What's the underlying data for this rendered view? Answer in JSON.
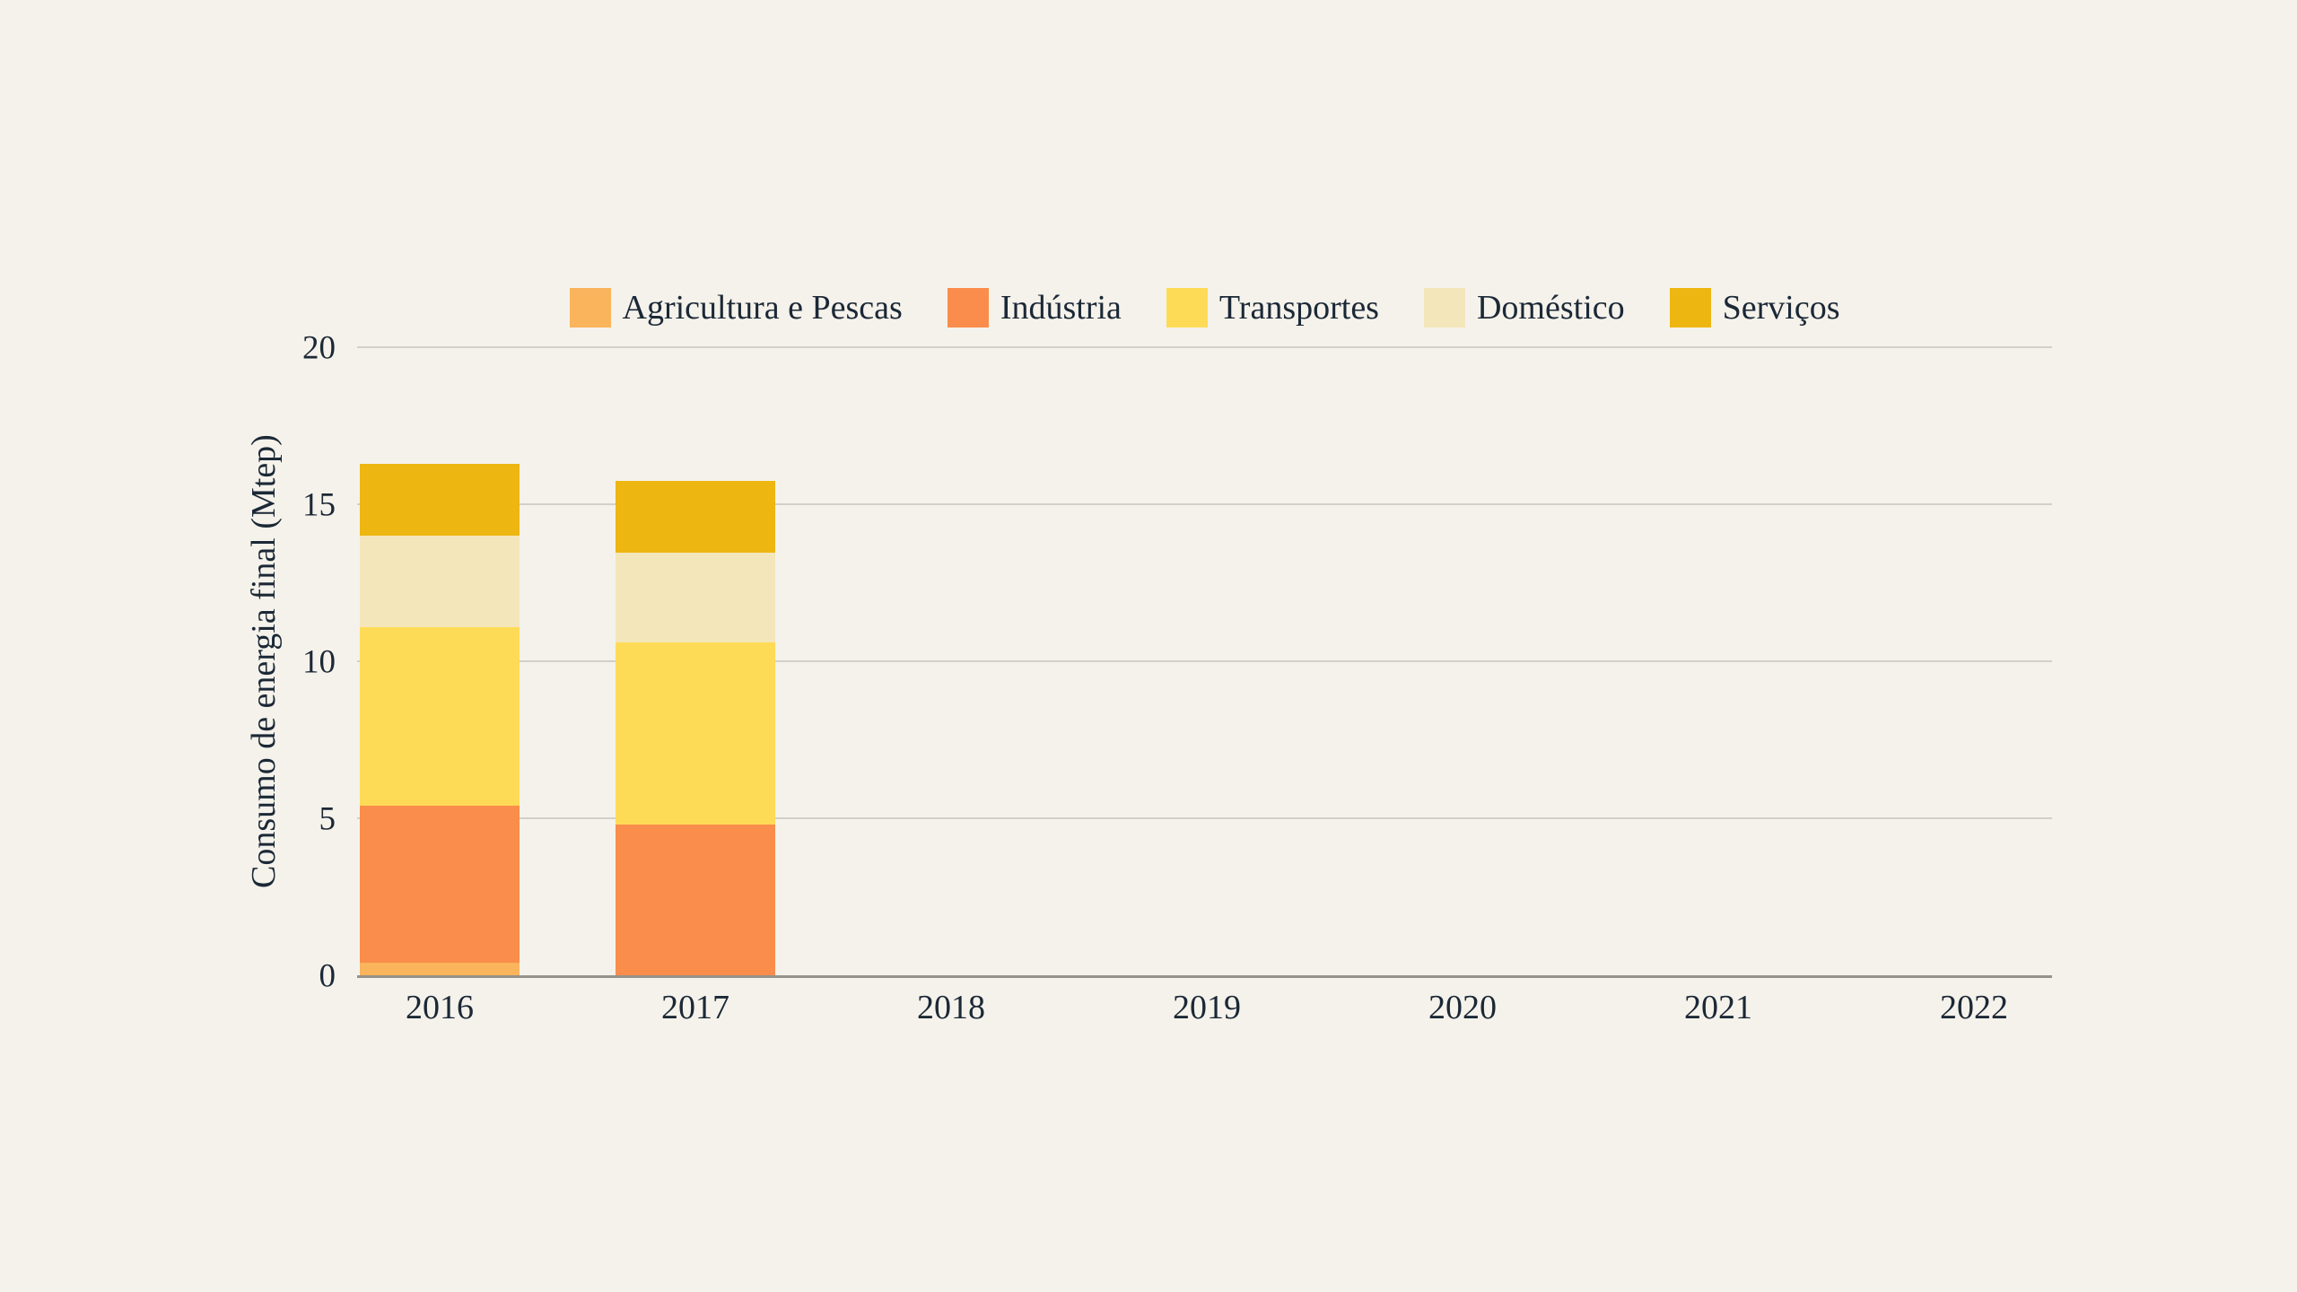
{
  "colors": {
    "background": "#F5F2EB",
    "text": "#1B2836",
    "gridline": "#D3D0C9",
    "axis_line": "#95928B"
  },
  "chart_data": {
    "type": "bar",
    "stacked": true,
    "title": "",
    "ylabel": "Consumo de energia final (Mtep)",
    "xlabel": "",
    "categories": [
      "2016",
      "2017",
      "2018",
      "2019",
      "2020",
      "2021",
      "2022"
    ],
    "series": [
      {
        "name": "Agricultura e Pescas",
        "color": "#F9B45C",
        "values": [
          0.4,
          0,
          null,
          null,
          null,
          null,
          null
        ]
      },
      {
        "name": "Indústria",
        "color": "#FA8D4B",
        "values": [
          5.0,
          4.8,
          null,
          null,
          null,
          null,
          null
        ]
      },
      {
        "name": "Transportes",
        "color": "#FEDB57",
        "values": [
          5.7,
          5.8,
          null,
          null,
          null,
          null,
          null
        ]
      },
      {
        "name": "Doméstico",
        "color": "#F4E6BB",
        "values": [
          2.9,
          2.85,
          null,
          null,
          null,
          null,
          null
        ]
      },
      {
        "name": "Serviços",
        "color": "#EDB611",
        "values": [
          2.3,
          2.3,
          null,
          null,
          null,
          null,
          null
        ]
      }
    ],
    "ylim": [
      0,
      20
    ],
    "yticks": [
      0,
      5,
      10,
      15,
      20
    ],
    "grid": "horizontal",
    "legend_position": "top"
  }
}
